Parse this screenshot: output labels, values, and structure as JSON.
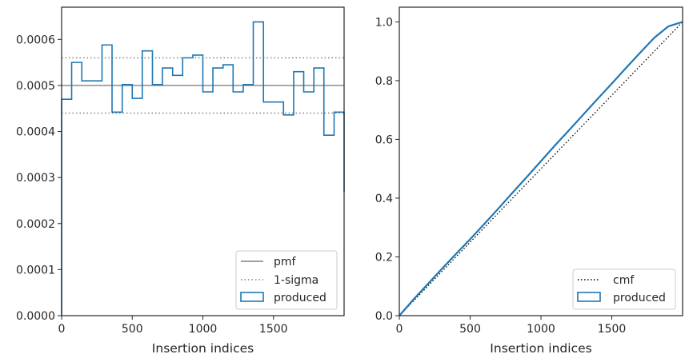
{
  "colors": {
    "hist": "#1f77b4",
    "pmf": "#808080",
    "sigma": "#808080",
    "cmf": "#000000",
    "frame": "#262626"
  },
  "chart_data": [
    {
      "type": "line",
      "xlabel": "Insertion indices",
      "ylabel": "",
      "xlim": [
        0,
        2000
      ],
      "ylim": [
        0,
        0.00067
      ],
      "xticks": [
        0,
        500,
        1000,
        1500
      ],
      "xtick_labels": [
        "0",
        "500",
        "1000",
        "1500"
      ],
      "yticks": [
        0,
        0.0001,
        0.0002,
        0.0003,
        0.0004,
        0.0005,
        0.0006
      ],
      "ytick_labels": [
        "0.0000",
        "0.0001",
        "0.0002",
        "0.0003",
        "0.0004",
        "0.0005",
        "0.0006"
      ],
      "grid": false,
      "legend_position": "lower-right",
      "legend": [
        "pmf",
        "1-sigma",
        "produced"
      ],
      "pmf": 0.0005,
      "sigma_band": [
        0.00044,
        0.00056
      ],
      "bin_edges": [
        0,
        71,
        143,
        214,
        286,
        357,
        429,
        500,
        571,
        643,
        714,
        786,
        857,
        929,
        1000,
        1071,
        1143,
        1214,
        1286,
        1357,
        1429,
        1500,
        1571,
        1643,
        1714,
        1786,
        1857,
        1929,
        2000
      ],
      "produced": [
        0.00047,
        0.00055,
        0.00051,
        0.00051,
        0.000588,
        0.000442,
        0.000502,
        0.000472,
        0.000575,
        0.000502,
        0.000538,
        0.000522,
        0.00056,
        0.000566,
        0.000486,
        0.000538,
        0.000545,
        0.000486,
        0.000502,
        0.000638,
        0.000464,
        0.000464,
        0.000436,
        0.00053,
        0.000486,
        0.000538,
        0.000392,
        0.000442,
        0.000268
      ]
    },
    {
      "type": "line",
      "xlabel": "Insertion indices",
      "ylabel": "",
      "xlim": [
        0,
        2000
      ],
      "ylim": [
        0,
        1.05
      ],
      "xticks": [
        0,
        500,
        1000,
        1500
      ],
      "xtick_labels": [
        "0",
        "500",
        "1000",
        "1500"
      ],
      "yticks": [
        0,
        0.2,
        0.4,
        0.6,
        0.8,
        1.0
      ],
      "ytick_labels": [
        "0.0",
        "0.2",
        "0.4",
        "0.6",
        "0.8",
        "1.0"
      ],
      "grid": false,
      "legend_position": "lower-right",
      "legend": [
        "cmf",
        "produced"
      ],
      "cmf": {
        "x": [
          0,
          2000
        ],
        "y": [
          0,
          1
        ]
      },
      "produced": {
        "x": [
          0,
          100,
          200,
          300,
          400,
          500,
          600,
          700,
          800,
          900,
          1000,
          1100,
          1200,
          1300,
          1400,
          1500,
          1600,
          1700,
          1800,
          1900,
          2000
        ],
        "y": [
          0,
          0.055,
          0.107,
          0.159,
          0.21,
          0.26,
          0.312,
          0.365,
          0.419,
          0.472,
          0.526,
          0.58,
          0.632,
          0.685,
          0.738,
          0.79,
          0.843,
          0.895,
          0.946,
          0.985,
          1.0
        ]
      }
    }
  ]
}
